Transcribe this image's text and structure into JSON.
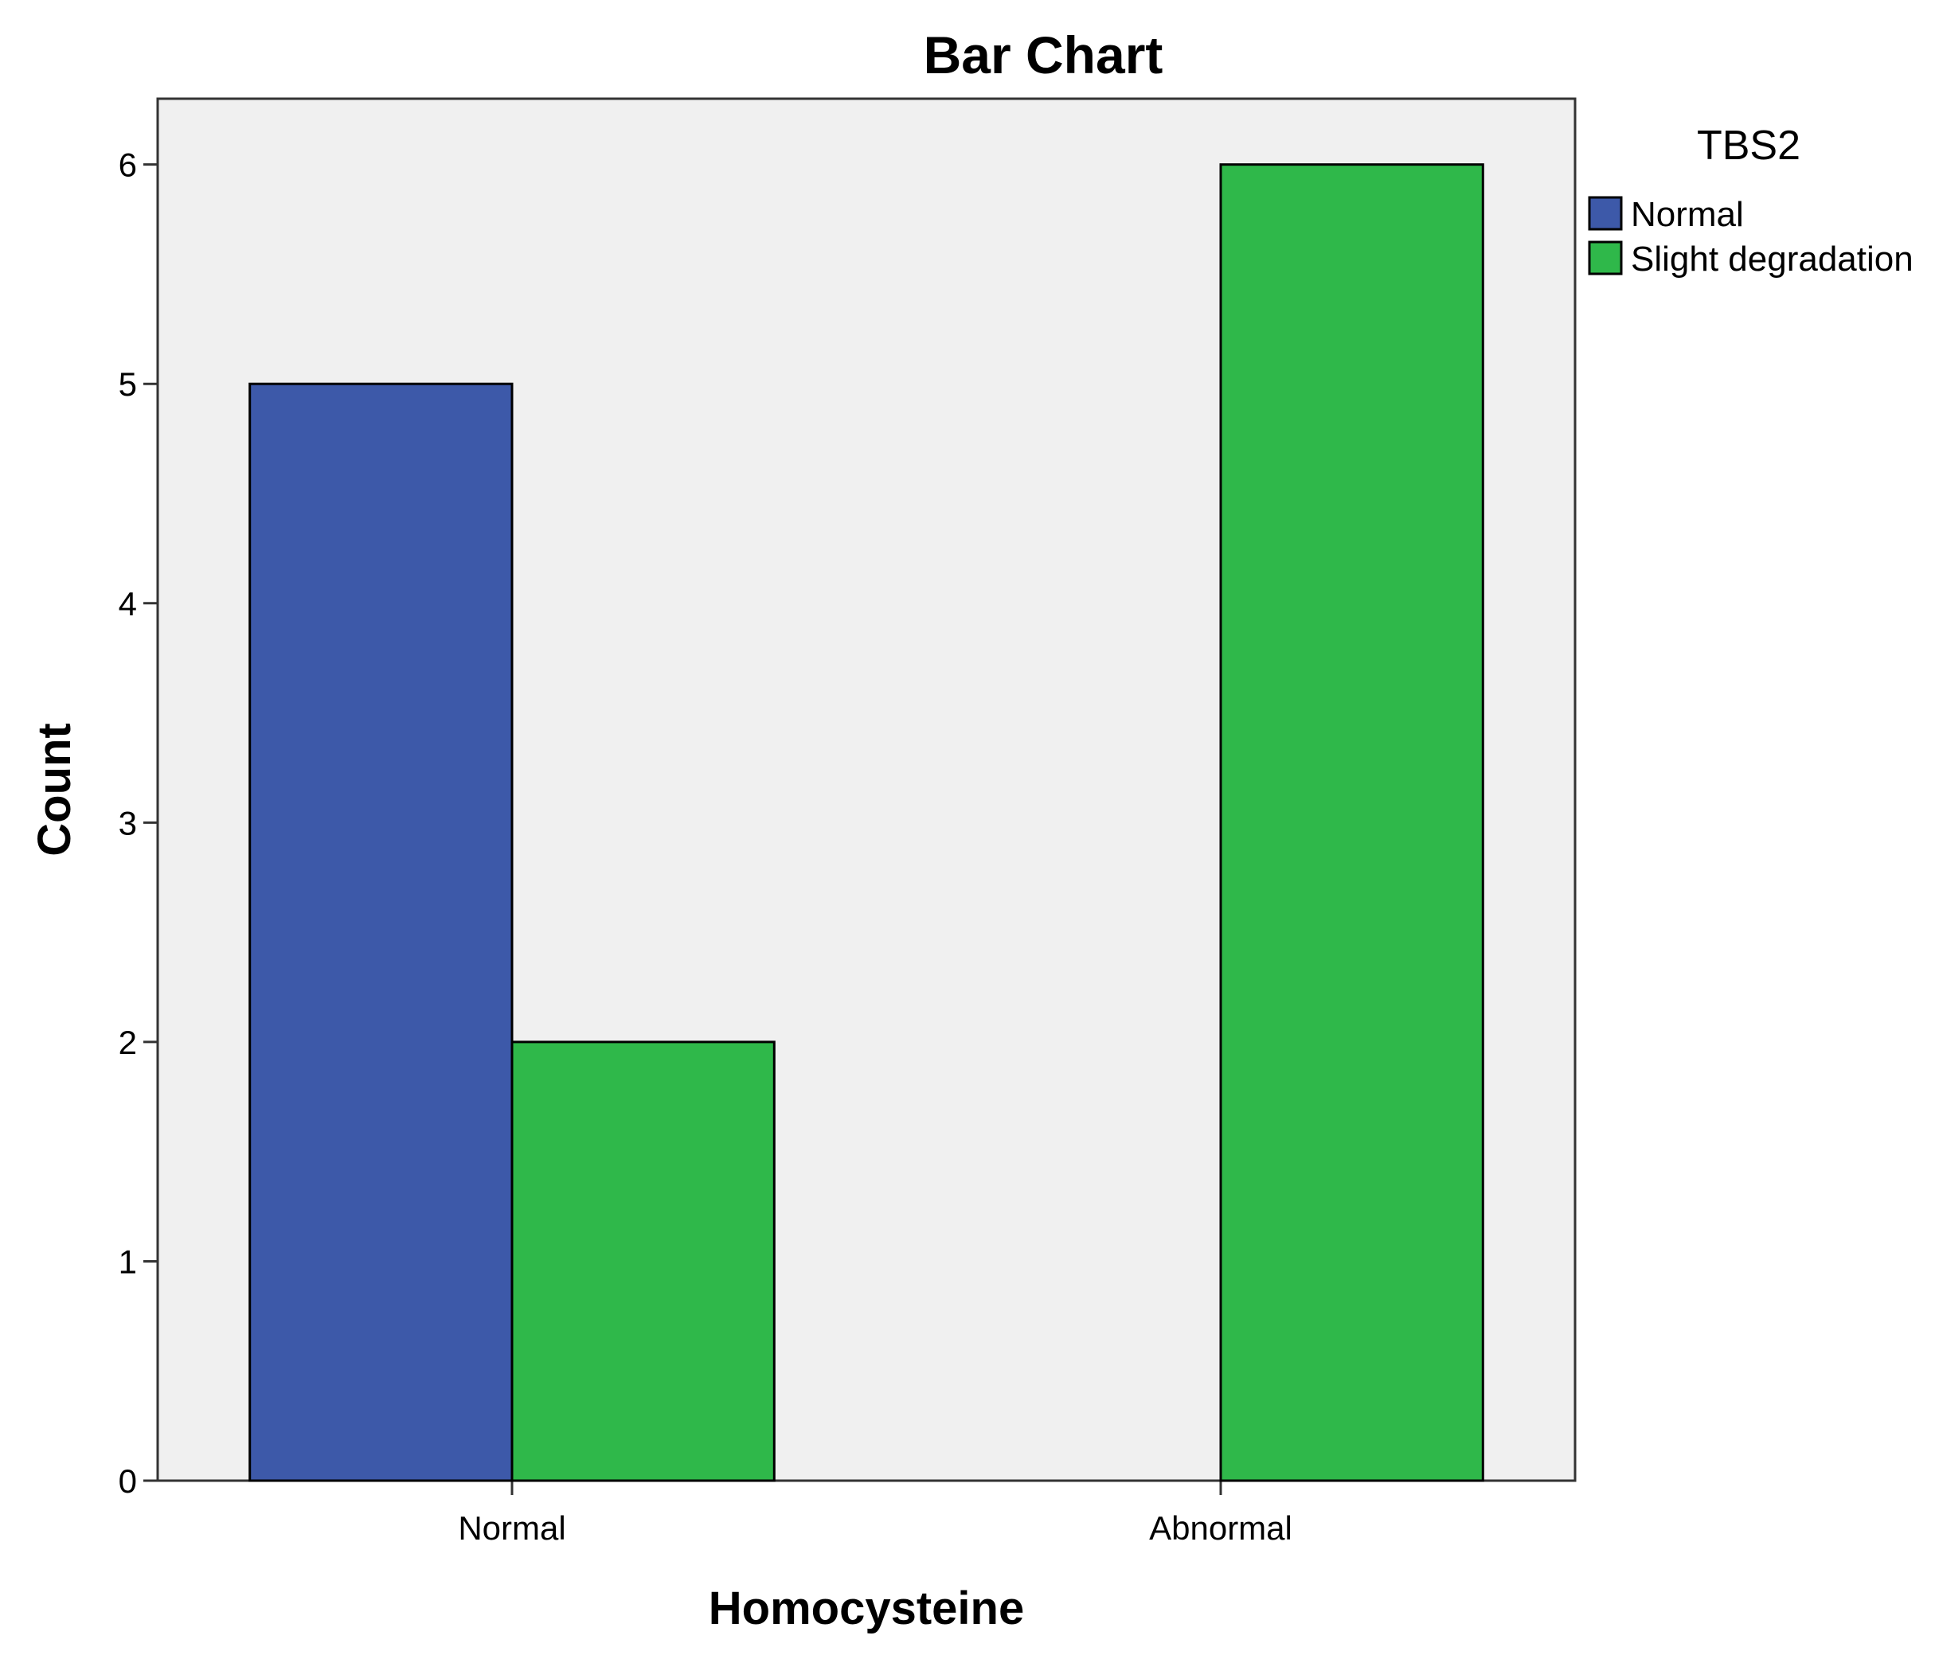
{
  "chart_data": {
    "type": "bar",
    "title": "Bar Chart",
    "xlabel": "Homocysteine",
    "ylabel": "Count",
    "categories": [
      "Normal",
      "Abnormal"
    ],
    "series": [
      {
        "name": "Normal",
        "values": [
          5,
          0
        ],
        "color": "#3d59a9"
      },
      {
        "name": "Slight degradation",
        "values": [
          2,
          6
        ],
        "color": "#2fb84a"
      }
    ],
    "ylim": [
      0,
      6.3
    ],
    "yticks": [
      "0",
      "1",
      "2",
      "3",
      "4",
      "5",
      "6"
    ],
    "legend": {
      "title": "TBS2",
      "placement": "top-right, outside plot"
    },
    "grid": false,
    "plot_background": "#f0f0f0"
  }
}
